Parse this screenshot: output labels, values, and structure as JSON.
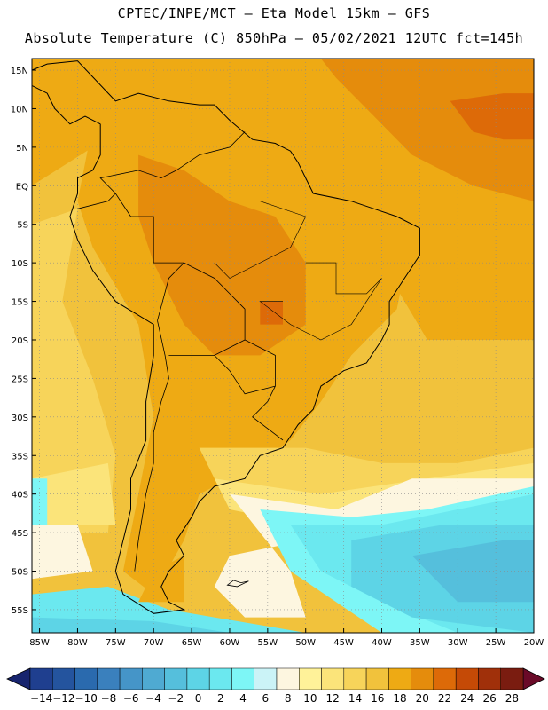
{
  "header": {
    "line1": "CPTEC/INPE/MCT –  Eta Model 15km – GFS",
    "line2": "Absolute Temperature (C) 850hPa – 05/02/2021 12UTC fct=145h"
  },
  "map": {
    "lat_ticks": [
      "15N",
      "10N",
      "5N",
      "EQ",
      "5S",
      "10S",
      "15S",
      "20S",
      "25S",
      "30S",
      "35S",
      "40S",
      "45S",
      "50S",
      "55S"
    ],
    "lon_ticks": [
      "85W",
      "80W",
      "75W",
      "70W",
      "65W",
      "60W",
      "55W",
      "50W",
      "45W",
      "40W",
      "35W",
      "30W",
      "25W",
      "20W"
    ],
    "lat_range": [
      16.5,
      -58
    ],
    "lon_range": [
      -86,
      -20
    ]
  },
  "colorbar": {
    "labels": [
      "-14",
      "-12",
      "-10",
      "-8",
      "-6",
      "-4",
      "-2",
      "0",
      "2",
      "4",
      "6",
      "8",
      "10",
      "12",
      "14",
      "16",
      "18",
      "20",
      "22",
      "24",
      "26",
      "28"
    ],
    "colors": [
      "#1f3f8f",
      "#24549e",
      "#2a6aae",
      "#3a80bd",
      "#4595c8",
      "#4faad2",
      "#55bfdc",
      "#5dd4e6",
      "#6be8ef",
      "#7df6f6",
      "#cbf3f7",
      "#fdf6e0",
      "#fff299",
      "#fbe47a",
      "#f7d45a",
      "#f1c23c",
      "#eeaa14",
      "#e58c0c",
      "#dd6a08",
      "#c54a06",
      "#a0300a",
      "#7a1c10"
    ],
    "below_color": "#17246e",
    "above_color": "#6a0a28"
  },
  "palette": {
    "t18": "#eeaa14",
    "t20": "#e58c0c",
    "t22": "#dd6a08",
    "t24": "#c54a06",
    "t16": "#f1c23c",
    "t14": "#f7d45a",
    "t12": "#fbe47a",
    "t10": "#fff299",
    "t8": "#fdf6e0",
    "t6": "#cbf3f7",
    "t4": "#7df6f6",
    "t2": "#6be8ef",
    "t0": "#5dd4e6",
    "tm2": "#55bfdc",
    "tm4": "#4faad2",
    "land_line": "#000000"
  }
}
